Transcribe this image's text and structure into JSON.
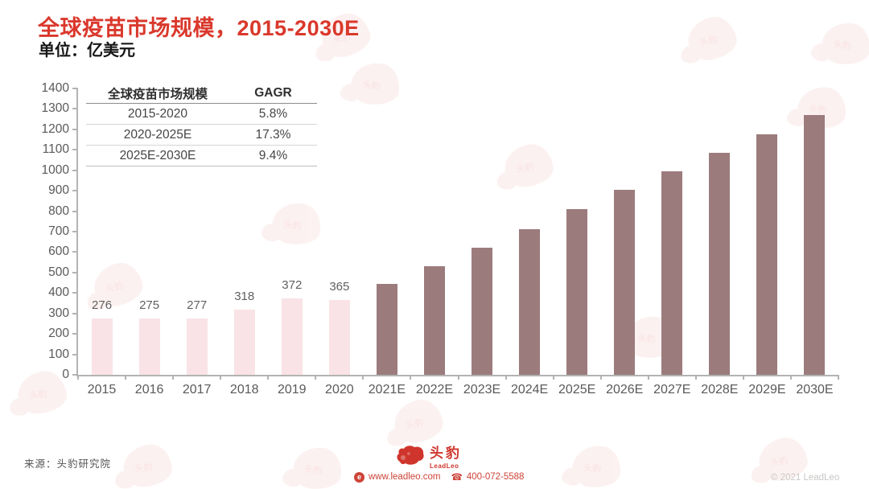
{
  "header": {
    "title": "全球疫苗市场规模，2015-2030E",
    "unit_label": "单位：亿美元"
  },
  "cagr_table": {
    "headers": [
      "全球疫苗市场规模",
      "GAGR"
    ],
    "rows": [
      [
        "2015-2020",
        "5.8%"
      ],
      [
        "2020-2025E",
        "17.3%"
      ],
      [
        "2025E-2030E",
        "9.4%"
      ]
    ]
  },
  "chart_data": {
    "type": "bar",
    "title": "全球疫苗市场规模，2015-2030E",
    "ylabel": "亿美元",
    "categories": [
      "2015",
      "2016",
      "2017",
      "2018",
      "2019",
      "2020",
      "2021E",
      "2022E",
      "2023E",
      "2024E",
      "2025E",
      "2026E",
      "2027E",
      "2028E",
      "2029E",
      "2030E"
    ],
    "values": [
      276,
      275,
      277,
      318,
      372,
      365,
      445,
      530,
      620,
      710,
      810,
      905,
      995,
      1085,
      1175,
      1270
    ],
    "historical_count": 6,
    "data_labels": [
      "276",
      "275",
      "277",
      "318",
      "372",
      "365"
    ],
    "ylim": [
      0,
      1400
    ],
    "ytick_step": 100,
    "grid": false,
    "legend": "none",
    "colors": {
      "historical": "#f9e3e6",
      "forecast": "#9c7b7d"
    }
  },
  "footer": {
    "source": "来源：头豹研究院",
    "logo_cn": "头豹",
    "logo_en": "LeadLeo",
    "web_icon_letter": "e",
    "website": "www.leadleo.com",
    "phone": "400-072-5588",
    "copyright": "© 2021 LeadLeo"
  },
  "colors": {
    "title_red": "#da382c",
    "historical_bar": "#f9e3e6",
    "forecast_bar": "#9c7b7d",
    "axis_gray": "#b3b3b3",
    "footer_red": "#cd4437"
  }
}
